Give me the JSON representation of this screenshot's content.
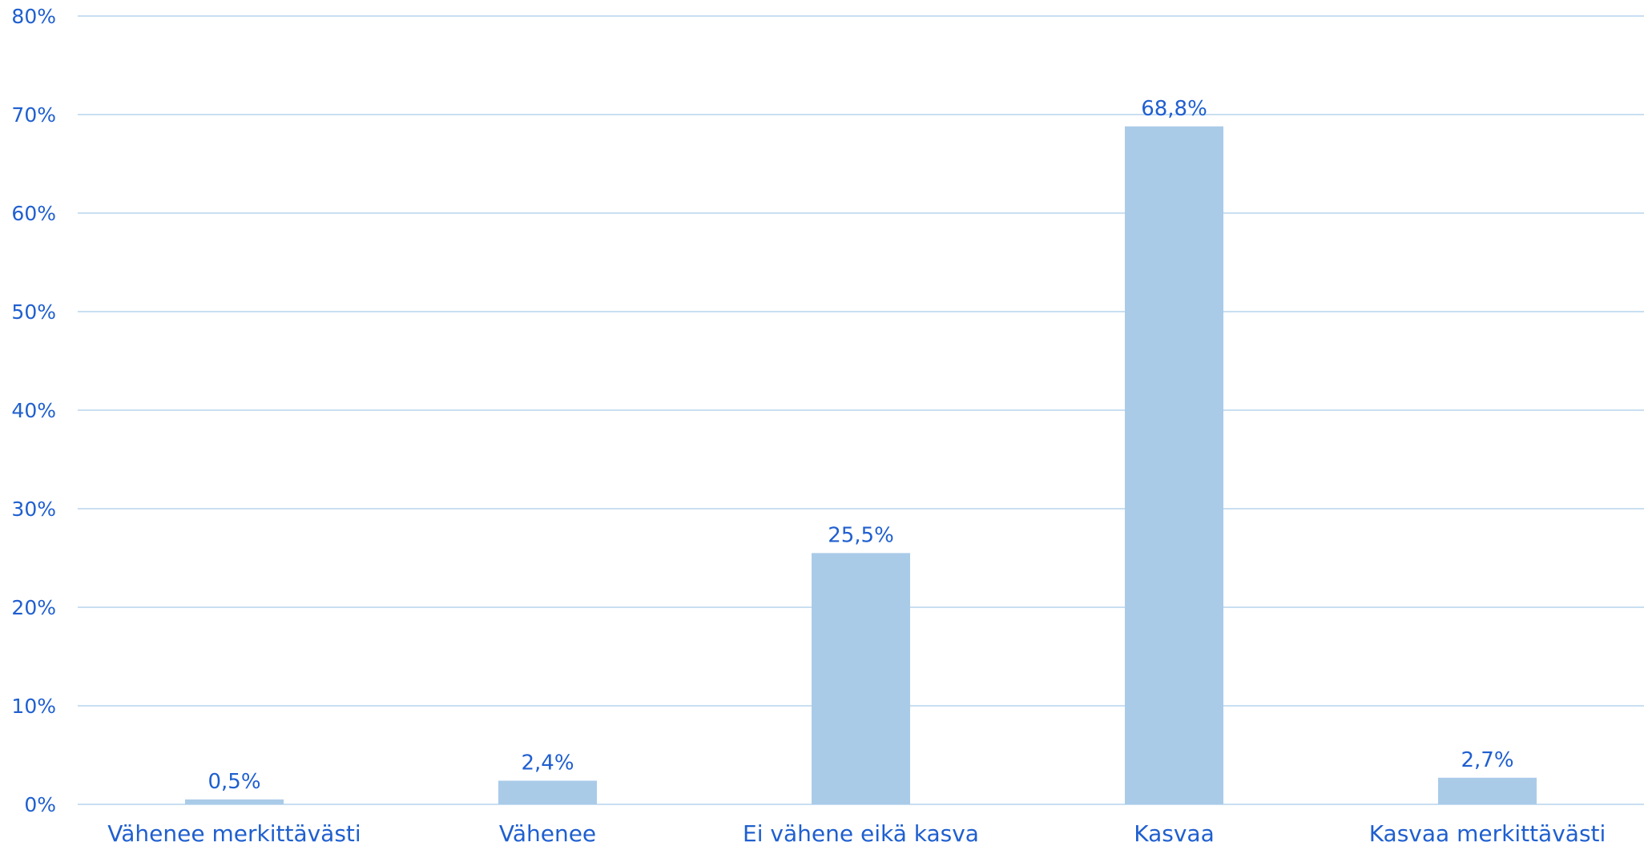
{
  "colors": {
    "bar": "#a9cbe8",
    "text": "#1f5fcf",
    "grid": "#c9dff1"
  },
  "chart_data": {
    "type": "bar",
    "categories": [
      "Vähenee merkittävästi",
      "Vähenee",
      "Ei vähene eikä kasva",
      "Kasvaa",
      "Kasvaa merkittävästi"
    ],
    "values": [
      0.5,
      2.4,
      25.5,
      68.8,
      2.7
    ],
    "value_labels": [
      "0,5%",
      "2,4%",
      "25,5%",
      "68,8%",
      "2,7%"
    ],
    "ylim": [
      0,
      80
    ],
    "yticks": [
      0,
      10,
      20,
      30,
      40,
      50,
      60,
      70,
      80
    ],
    "ytick_labels": [
      "0%",
      "10%",
      "20%",
      "30%",
      "40%",
      "50%",
      "60%",
      "70%",
      "80%"
    ],
    "grid": true,
    "legend": "none"
  }
}
